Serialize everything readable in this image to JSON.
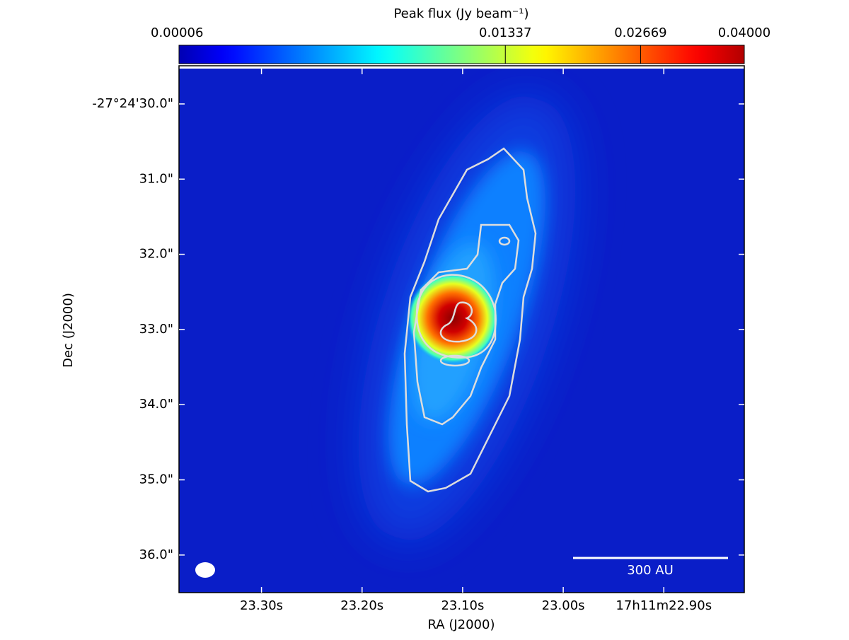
{
  "chart_data": {
    "type": "image",
    "title": "Peak flux (Jy beam⁻¹)",
    "xlabel": "RA (J2000)",
    "ylabel": "Dec (J2000)",
    "colormap": "jet",
    "colorscale": "sqrt",
    "clim": [
      6e-05,
      0.04
    ],
    "cticks": [
      6e-05,
      0.01337,
      0.02669,
      {
        "value": 0.04,
        "label": "0.04000"
      }
    ],
    "xlim": [
      23.382,
      22.82
    ],
    "xticks": [
      {
        "value": 23.3,
        "label": "23.30s"
      },
      {
        "value": 23.2,
        "label": "23.20s"
      },
      {
        "value": 23.1,
        "label": "23.10s"
      },
      {
        "value": 23.0,
        "label": "23.00s"
      },
      {
        "value": 22.9,
        "label": "17h11m22.90s"
      }
    ],
    "ylim": [
      36.5,
      29.53
    ],
    "yticks": [
      {
        "value": 30,
        "label": "-27°24'30.0\""
      },
      {
        "value": 31,
        "label": "31.0\""
      },
      {
        "value": 32,
        "label": "32.0\""
      },
      {
        "value": 33,
        "label": "33.0\""
      },
      {
        "value": 34,
        "label": "34.0\""
      },
      {
        "value": 35,
        "label": "35.0\""
      },
      {
        "value": 36,
        "label": "36.0\""
      }
    ],
    "scalebar": "300 AU"
  }
}
